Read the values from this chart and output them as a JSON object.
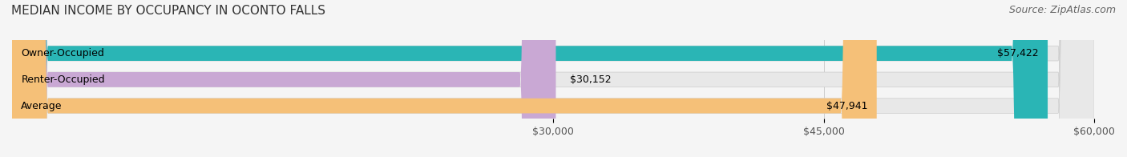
{
  "title": "MEDIAN INCOME BY OCCUPANCY IN OCONTO FALLS",
  "source": "Source: ZipAtlas.com",
  "categories": [
    "Owner-Occupied",
    "Renter-Occupied",
    "Average"
  ],
  "values": [
    57422,
    30152,
    47941
  ],
  "bar_colors": [
    "#2ab5b5",
    "#c9a8d4",
    "#f5c078"
  ],
  "bar_labels": [
    "$57,422",
    "$30,152",
    "$47,941"
  ],
  "xlim": [
    0,
    60000
  ],
  "xticks": [
    30000,
    45000,
    60000
  ],
  "xtick_labels": [
    "$30,000",
    "$45,000",
    "$60,000"
  ],
  "background_color": "#f5f5f5",
  "bar_bg_color": "#e8e8e8",
  "title_fontsize": 11,
  "source_fontsize": 9,
  "label_fontsize": 9,
  "tick_fontsize": 9
}
